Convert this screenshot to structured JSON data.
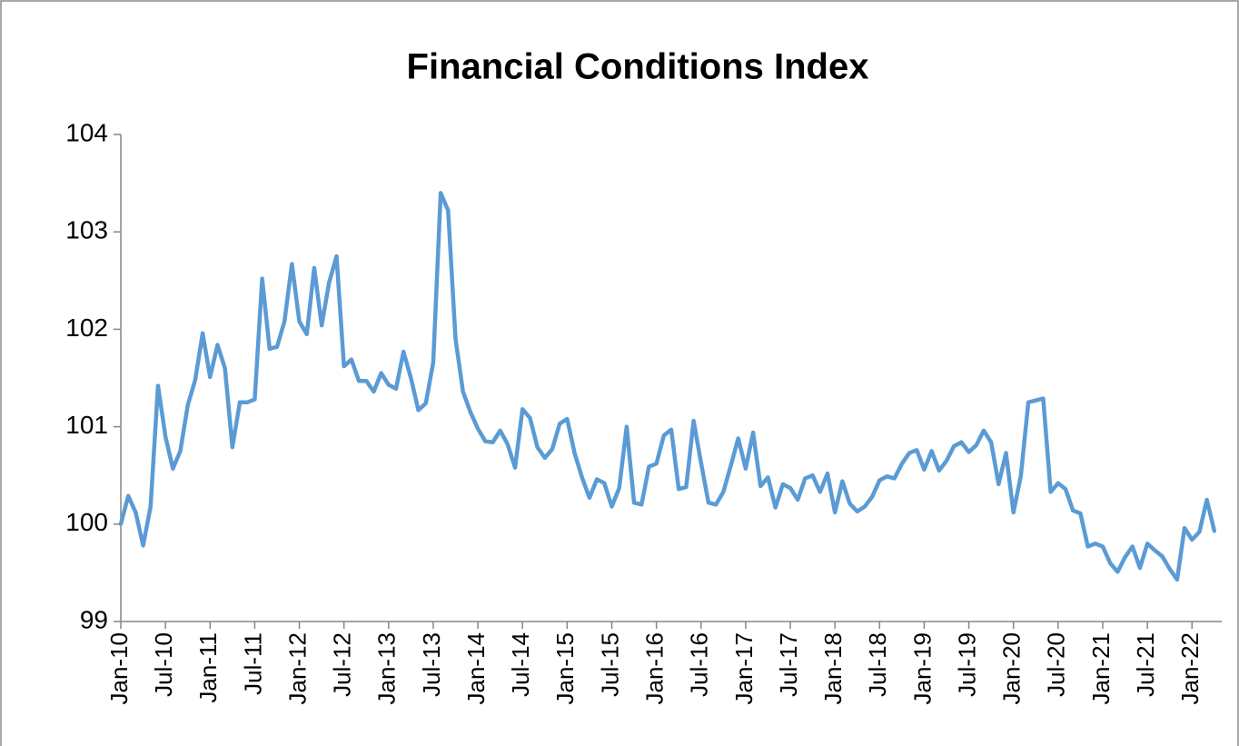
{
  "chart_data": {
    "type": "line",
    "title": "Financial Conditions Index",
    "categories": [
      "Jan-10",
      null,
      null,
      null,
      null,
      null,
      "Jul-10",
      null,
      null,
      null,
      null,
      null,
      "Jan-11",
      null,
      null,
      null,
      null,
      null,
      "Jul-11",
      null,
      null,
      null,
      null,
      null,
      "Jan-12",
      null,
      null,
      null,
      null,
      null,
      "Jul-12",
      null,
      null,
      null,
      null,
      null,
      "Jan-13",
      null,
      null,
      null,
      null,
      null,
      "Jul-13",
      null,
      null,
      null,
      null,
      null,
      "Jan-14",
      null,
      null,
      null,
      null,
      null,
      "Jul-14",
      null,
      null,
      null,
      null,
      null,
      "Jan-15",
      null,
      null,
      null,
      null,
      null,
      "Jul-15",
      null,
      null,
      null,
      null,
      null,
      "Jan-16",
      null,
      null,
      null,
      null,
      null,
      "Jul-16",
      null,
      null,
      null,
      null,
      null,
      "Jan-17",
      null,
      null,
      null,
      null,
      null,
      "Jul-17",
      null,
      null,
      null,
      null,
      null,
      "Jan-18",
      null,
      null,
      null,
      null,
      null,
      "Jul-18",
      null,
      null,
      null,
      null,
      null,
      "Jan-19",
      null,
      null,
      null,
      null,
      null,
      "Jul-19",
      null,
      null,
      null,
      null,
      null,
      "Jan-20",
      null,
      null,
      null,
      null,
      null,
      "Jul-20",
      null,
      null,
      null,
      null,
      null,
      "Jan-21",
      null,
      null,
      null,
      null,
      null,
      "Jul-21",
      null,
      null,
      null,
      null,
      null,
      "Jan-22",
      null,
      null,
      null
    ],
    "values": [
      100.0,
      100.29,
      100.12,
      99.78,
      100.18,
      101.42,
      100.9,
      100.57,
      100.75,
      101.22,
      101.48,
      101.96,
      101.51,
      101.84,
      101.6,
      100.79,
      101.25,
      101.25,
      101.28,
      102.52,
      101.8,
      101.82,
      102.08,
      102.67,
      102.08,
      101.95,
      102.63,
      102.04,
      102.48,
      102.75,
      101.62,
      101.69,
      101.47,
      101.47,
      101.36,
      101.55,
      101.43,
      101.39,
      101.77,
      101.5,
      101.17,
      101.24,
      101.66,
      103.4,
      103.22,
      101.9,
      101.36,
      101.15,
      100.98,
      100.85,
      100.84,
      100.96,
      100.82,
      100.58,
      101.18,
      101.09,
      100.79,
      100.68,
      100.77,
      101.03,
      101.08,
      100.73,
      100.48,
      100.27,
      100.46,
      100.42,
      100.18,
      100.37,
      101.0,
      100.22,
      100.2,
      100.59,
      100.62,
      100.91,
      100.97,
      100.36,
      100.38,
      101.06,
      100.63,
      100.22,
      100.2,
      100.33,
      100.6,
      100.88,
      100.57,
      100.94,
      100.39,
      100.48,
      100.17,
      100.41,
      100.37,
      100.25,
      100.47,
      100.5,
      100.33,
      100.52,
      100.12,
      100.44,
      100.21,
      100.13,
      100.18,
      100.28,
      100.45,
      100.49,
      100.47,
      100.62,
      100.73,
      100.76,
      100.56,
      100.75,
      100.55,
      100.65,
      100.8,
      100.84,
      100.74,
      100.81,
      100.96,
      100.84,
      100.41,
      100.73,
      100.12,
      100.5,
      101.25,
      101.27,
      101.29,
      100.33,
      100.42,
      100.36,
      100.14,
      100.11,
      99.77,
      99.8,
      99.77,
      99.6,
      99.51,
      99.66,
      99.77,
      99.55,
      99.8,
      99.73,
      99.67,
      99.54,
      99.43,
      99.96,
      99.84,
      99.92,
      100.25,
      99.93
    ],
    "color": "#5b9bd5",
    "ylim": [
      99,
      104
    ],
    "yticks": [
      99,
      100,
      101,
      102,
      103,
      104
    ],
    "grid": false
  }
}
